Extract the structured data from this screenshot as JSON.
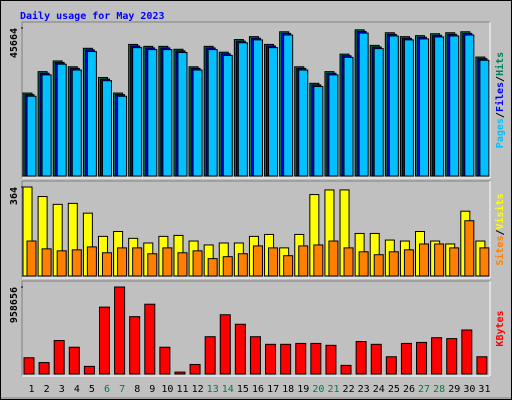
{
  "chart_data": [
    {
      "type": "bar",
      "title": "Daily usage for May 2023",
      "ylim": [
        0,
        45664
      ],
      "yticks": [
        45664
      ],
      "legend_separator": "/",
      "series": [
        {
          "name": "Hits",
          "color": "#00805c",
          "values": [
            25600,
            32200,
            35500,
            33700,
            39400,
            30400,
            25600,
            40600,
            40000,
            40000,
            39100,
            33700,
            40000,
            38200,
            42100,
            43000,
            40600,
            44500,
            33700,
            28600,
            32200,
            37600,
            45100,
            40300,
            44200,
            43000,
            43300,
            43900,
            44200,
            44500,
            36700
          ]
        },
        {
          "name": "Files",
          "color": "#0000ff",
          "values": [
            25100,
            31700,
            35000,
            33200,
            38900,
            29900,
            25100,
            40100,
            39500,
            39500,
            38600,
            33200,
            39500,
            37700,
            41600,
            42500,
            40100,
            44000,
            33200,
            28100,
            31700,
            37100,
            44600,
            39800,
            43700,
            42500,
            42800,
            43400,
            43700,
            44000,
            36200
          ]
        },
        {
          "name": "Pages",
          "color": "#00c0ff",
          "values": [
            24600,
            31200,
            34500,
            32700,
            38400,
            29400,
            24600,
            39600,
            39000,
            39000,
            38100,
            32700,
            39000,
            37200,
            41100,
            42000,
            39600,
            43500,
            32700,
            27600,
            31200,
            36600,
            44100,
            39300,
            43200,
            42000,
            42300,
            42900,
            43200,
            43500,
            35700
          ]
        }
      ]
    },
    {
      "type": "bar",
      "ylim": [
        0,
        364
      ],
      "yticks": [
        364
      ],
      "legend_separator": "/",
      "series": [
        {
          "name": "Visits",
          "color": "#ffff00",
          "values": [
            364,
            325,
            293,
            297,
            257,
            162,
            182,
            154,
            135,
            162,
            166,
            143,
            127,
            135,
            135,
            162,
            170,
            115,
            170,
            333,
            352,
            352,
            174,
            174,
            147,
            143,
            182,
            143,
            131,
            265,
            143
          ]
        },
        {
          "name": "Sites",
          "color": "#ff8000",
          "values": [
            143,
            111,
            103,
            107,
            119,
            95,
            115,
            115,
            91,
            115,
            95,
            103,
            71,
            79,
            91,
            123,
            115,
            83,
            123,
            127,
            143,
            115,
            99,
            87,
            99,
            107,
            131,
            131,
            115,
            226,
            115
          ]
        }
      ]
    },
    {
      "type": "bar",
      "ylim": [
        0,
        958656
      ],
      "yticks": [
        958656
      ],
      "categories": [
        "1",
        "2",
        "3",
        "4",
        "5",
        "6",
        "7",
        "8",
        "9",
        "10",
        "11",
        "12",
        "13",
        "14",
        "15",
        "16",
        "17",
        "18",
        "19",
        "20",
        "21",
        "22",
        "23",
        "24",
        "25",
        "26",
        "27",
        "28",
        "29",
        "30",
        "31"
      ],
      "highlight_categories": [
        "6",
        "7",
        "13",
        "14",
        "20",
        "21",
        "27",
        "28"
      ],
      "highlight_color": "#008040",
      "label_color": "#000000",
      "series": [
        {
          "name": "KBytes",
          "color": "#ff0000",
          "values": [
            179000,
            126000,
            369000,
            295000,
            84000,
            737000,
            958656,
            632000,
            769000,
            295000,
            21000,
            105000,
            411000,
            653000,
            548000,
            411000,
            327000,
            327000,
            337000,
            337000,
            316000,
            95000,
            358000,
            327000,
            190000,
            337000,
            348000,
            400000,
            390000,
            485000,
            190000
          ]
        }
      ]
    }
  ]
}
